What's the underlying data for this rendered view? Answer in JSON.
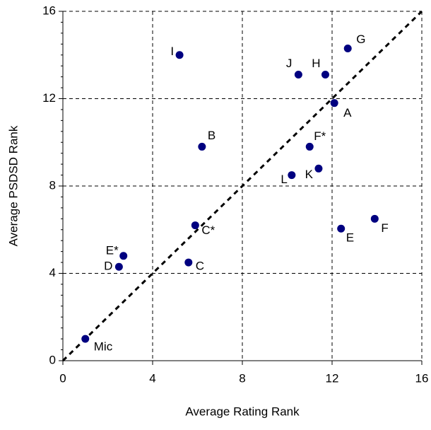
{
  "chart_data": {
    "type": "scatter",
    "xlabel": "Average Rating Rank",
    "ylabel": "Average PSDSD Rank",
    "labels": [
      "Mic",
      "D",
      "E*",
      "C",
      "C*",
      "B",
      "I",
      "J",
      "H",
      "G",
      "A",
      "F*",
      "L",
      "K",
      "E",
      "F"
    ],
    "x": [
      1.0,
      2.5,
      2.7,
      5.6,
      5.9,
      6.2,
      5.2,
      10.5,
      11.7,
      12.7,
      12.1,
      11.0,
      10.2,
      11.4,
      12.4,
      13.9
    ],
    "y": [
      1.0,
      4.3,
      4.8,
      4.5,
      6.2,
      9.8,
      14.0,
      13.1,
      13.1,
      14.3,
      11.8,
      9.8,
      8.5,
      8.8,
      6.05,
      6.5
    ],
    "color": "#000080",
    "xlim": [
      0,
      16
    ],
    "ylim": [
      0,
      16
    ],
    "xticks": [
      0,
      4,
      8,
      12,
      16
    ],
    "yticks": [
      0,
      4,
      8,
      12,
      16
    ],
    "grid": true
  }
}
